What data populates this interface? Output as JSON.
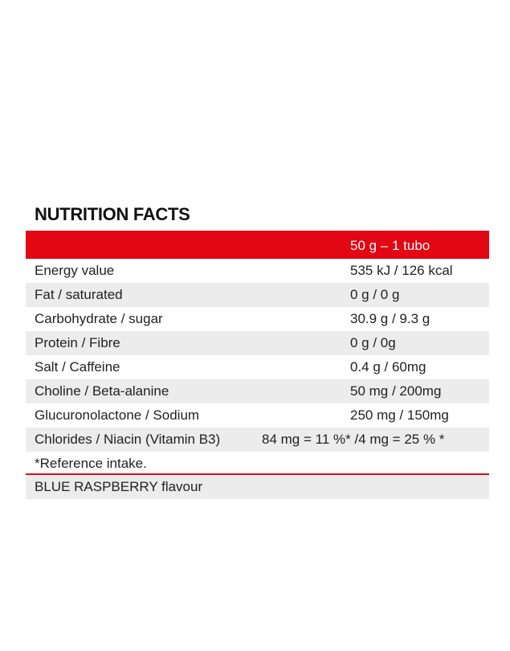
{
  "title": "NUTRITION FACTS",
  "header": {
    "serving": "50 g – 1 tubo"
  },
  "rows": [
    {
      "label": "Energy value",
      "value": "535 kJ / 126 kcal"
    },
    {
      "label": "Fat / saturated",
      "value": "0 g / 0 g"
    },
    {
      "label": "Carbohydrate / sugar",
      "value": "30.9 g / 9.3 g"
    },
    {
      "label": "Protein / Fibre",
      "value": "0 g / 0g"
    },
    {
      "label": "Salt / Caffeine",
      "value": "0.4 g / 60mg"
    },
    {
      "label": "Choline / Beta-alanine",
      "value": "50 mg / 200mg"
    },
    {
      "label": "Glucuronolactone / Sodium",
      "value": "250 mg / 150mg"
    },
    {
      "label": "Chlorides / Niacin (Vitamin B3)",
      "value": "84 mg = 11 %* /4 mg = 25 % *"
    }
  ],
  "footnote": "*Reference intake.",
  "flavour": "BLUE RASPBERRY flavour",
  "colors": {
    "accent": "#e30613",
    "stripe": "#ececec"
  }
}
